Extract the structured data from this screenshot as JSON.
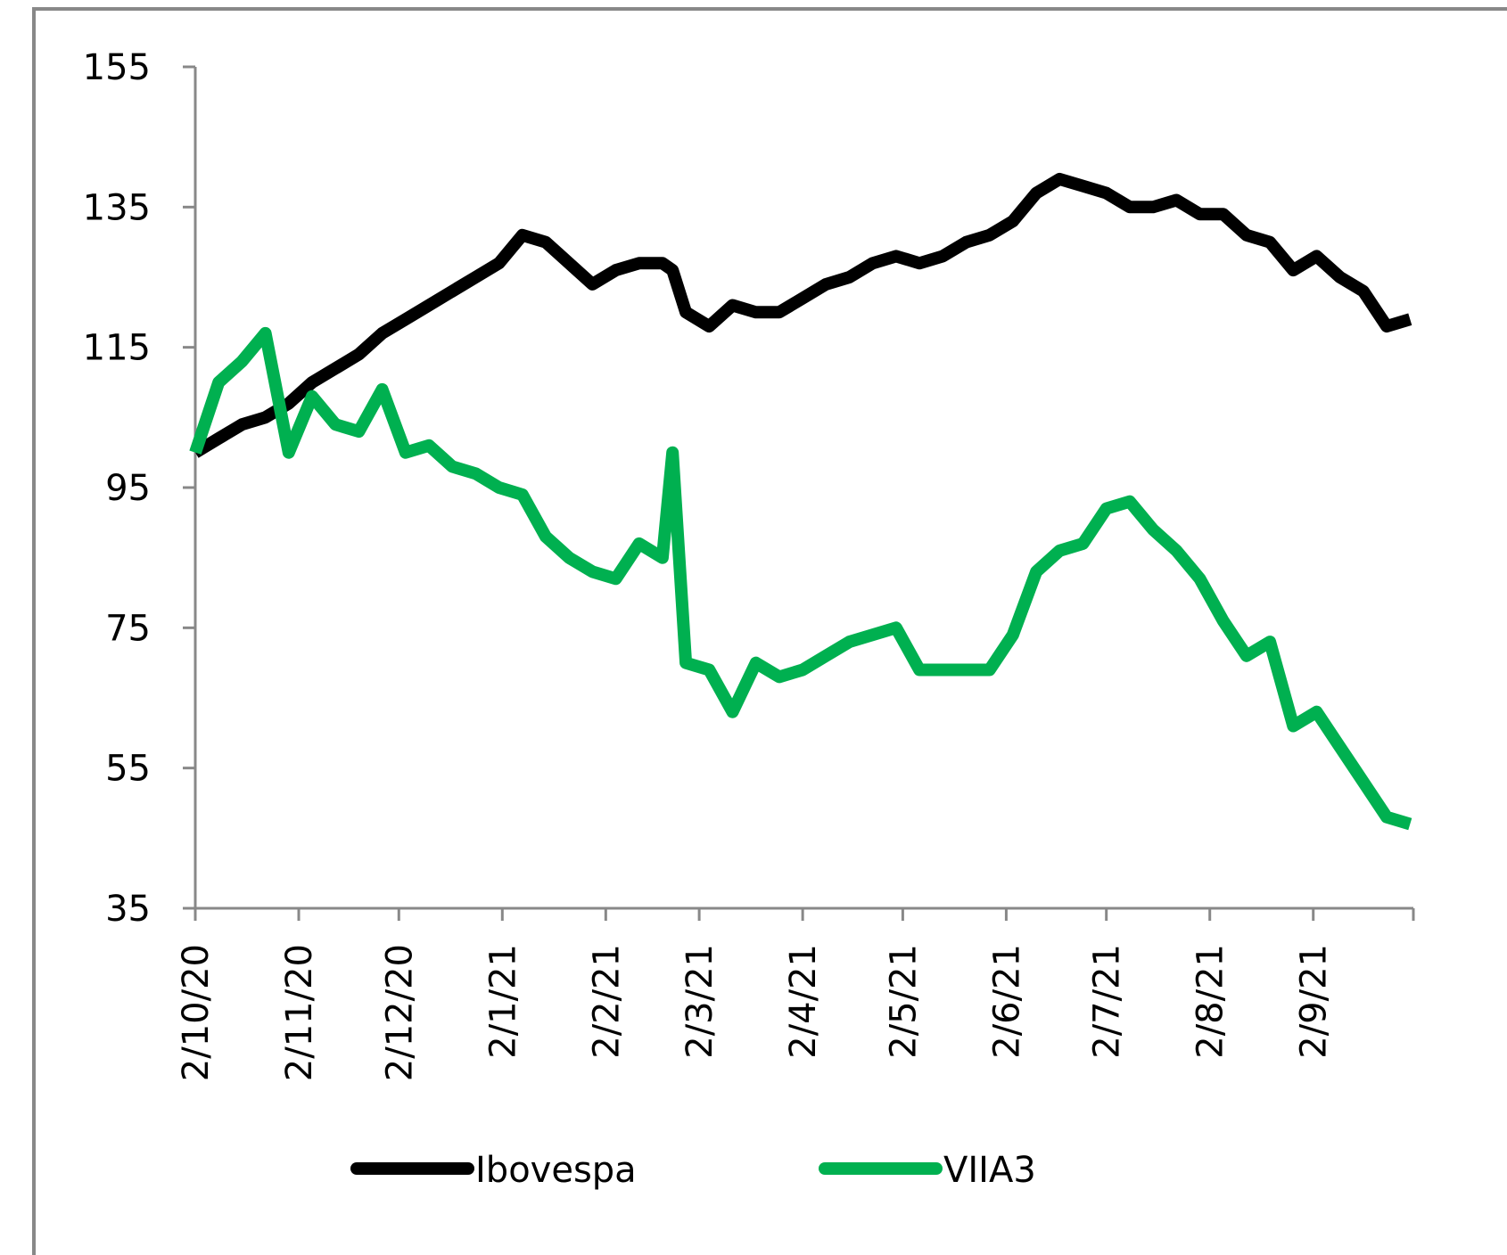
{
  "chart_data": {
    "type": "line",
    "x": [
      "2/10/20",
      "9/10/20",
      "16/10/20",
      "23/10/20",
      "30/10/20",
      "6/11/20",
      "13/11/20",
      "20/11/20",
      "27/11/20",
      "4/12/20",
      "11/12/20",
      "18/12/20",
      "25/12/20",
      "1/1/21",
      "8/1/21",
      "15/1/21",
      "22/1/21",
      "29/1/21",
      "5/2/21",
      "12/2/21",
      "19/2/21",
      "22/2/21",
      "26/2/21",
      "5/3/21",
      "12/3/21",
      "19/3/21",
      "26/3/21",
      "2/4/21",
      "9/4/21",
      "16/4/21",
      "23/4/21",
      "30/4/21",
      "7/5/21",
      "14/5/21",
      "21/5/21",
      "28/5/21",
      "4/6/21",
      "11/6/21",
      "18/6/21",
      "25/6/21",
      "2/7/21",
      "9/7/21",
      "16/7/21",
      "23/7/21",
      "30/7/21",
      "6/8/21",
      "13/8/21",
      "20/8/21",
      "27/8/21",
      "3/9/21",
      "10/9/21",
      "17/9/21",
      "24/9/21",
      "1/10/21"
    ],
    "series": [
      {
        "name": "Ibovespa",
        "color": "#000000",
        "values": [
          100,
          102,
          104,
          105,
          107,
          110,
          112,
          114,
          117,
          119,
          121,
          123,
          125,
          127,
          131,
          130,
          127,
          124,
          126,
          127,
          127,
          126,
          120,
          118,
          121,
          120,
          120,
          122,
          124,
          125,
          127,
          128,
          127,
          128,
          130,
          131,
          133,
          137,
          139,
          138,
          137,
          135,
          135,
          136,
          134,
          134,
          131,
          130,
          126,
          128,
          125,
          123,
          118,
          119
        ]
      },
      {
        "name": "VIIA3",
        "color": "#00b050",
        "values": [
          100,
          110,
          113,
          117,
          100,
          108,
          104,
          103,
          109,
          100,
          101,
          98,
          97,
          95,
          94,
          88,
          85,
          83,
          82,
          87,
          85,
          100,
          70,
          69,
          63,
          70,
          68,
          69,
          71,
          73,
          74,
          75,
          69,
          69,
          69,
          69,
          74,
          83,
          86,
          87,
          92,
          93,
          89,
          86,
          82,
          76,
          71,
          73,
          61,
          63,
          58,
          53,
          48,
          47
        ]
      }
    ],
    "xlim": [
      "2/10/20",
      "2/10/21"
    ],
    "xticks": [
      "2/10/20",
      "2/11/20",
      "2/12/20",
      "2/1/21",
      "2/2/21",
      "2/3/21",
      "2/4/21",
      "2/5/21",
      "2/6/21",
      "2/7/21",
      "2/8/21",
      "2/9/21"
    ],
    "ylim": [
      35,
      155
    ],
    "yticks": [
      35,
      55,
      75,
      95,
      115,
      135,
      155
    ],
    "grid": false,
    "legend": "bottom"
  }
}
